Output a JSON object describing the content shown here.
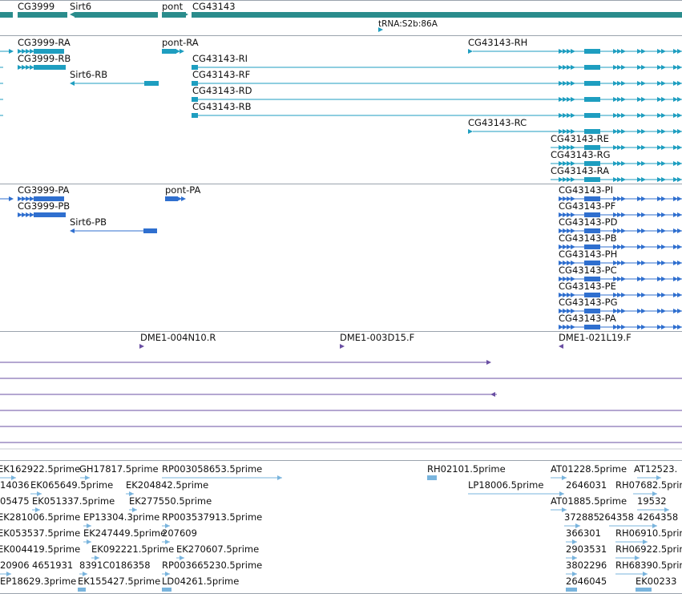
{
  "colors": {
    "gene": "#2a8c8c",
    "transcript": "#1e9ec0",
    "protein": "#2f6fcf",
    "clone": "#6a4fa3",
    "est": "#79b4dd",
    "separator": "#9aa3ad"
  },
  "genes": {
    "labels": [
      "CG3999",
      "Sirt6",
      "pont",
      "CG43143"
    ],
    "trna": "tRNA:S2b:86A"
  },
  "transcripts": {
    "labels": [
      "CG3999-RA",
      "CG3999-RB",
      "Sirt6-RB",
      "pont-RA",
      "CG43143-RH",
      "CG43143-RI",
      "CG43143-RF",
      "CG43143-RD",
      "CG43143-RB",
      "CG43143-RC",
      "CG43143-RE",
      "CG43143-RG",
      "CG43143-RA"
    ]
  },
  "proteins": {
    "labels": [
      "CG3999-PA",
      "CG3999-PB",
      "Sirt6-PB",
      "pont-PA",
      "CG43143-PI",
      "CG43143-PF",
      "CG43143-PD",
      "CG43143-PB",
      "CG43143-PH",
      "CG43143-PC",
      "CG43143-PE",
      "CG43143-PG",
      "CG43143-PA"
    ]
  },
  "clones": {
    "labels": [
      "DME1-004N10.R",
      "DME1-003D15.F",
      "DME1-021L19.F"
    ]
  },
  "ests": {
    "labels": [
      "EK162922.5prime",
      "GH17817.5prime",
      "RP003058653.5prime",
      "RH02101.5prime",
      "AT01228.5prime",
      "AT12523.",
      "14036",
      "EK065649.5prime",
      "EK204842.5prime",
      "LP18006.5prime",
      "2646031",
      "RH07682.5prime",
      "05475",
      "EK051337.5prime",
      "EK277550.5prime",
      "AT01885.5prime",
      "19532",
      "EK281006.5prime",
      "EP13304.3prime",
      "RP003537913.5prime",
      "372885",
      "264358",
      "4264358",
      "EK053537.5prime",
      "EK247449.5prime",
      "207609",
      "366301",
      "RH06910.5prime",
      "EK004419.5prime",
      "EK092221.5prime",
      "EK270607.5prime",
      "2903531",
      "RH06922.5prime",
      "20906",
      "4651931",
      "8391C0186358",
      "RP003665230.5prime",
      "3802296",
      "RH68390.5prime",
      "EP18629.3prime",
      "EK155427.5prime",
      "LD04261.5prime",
      "2646045",
      "EK00233"
    ]
  }
}
